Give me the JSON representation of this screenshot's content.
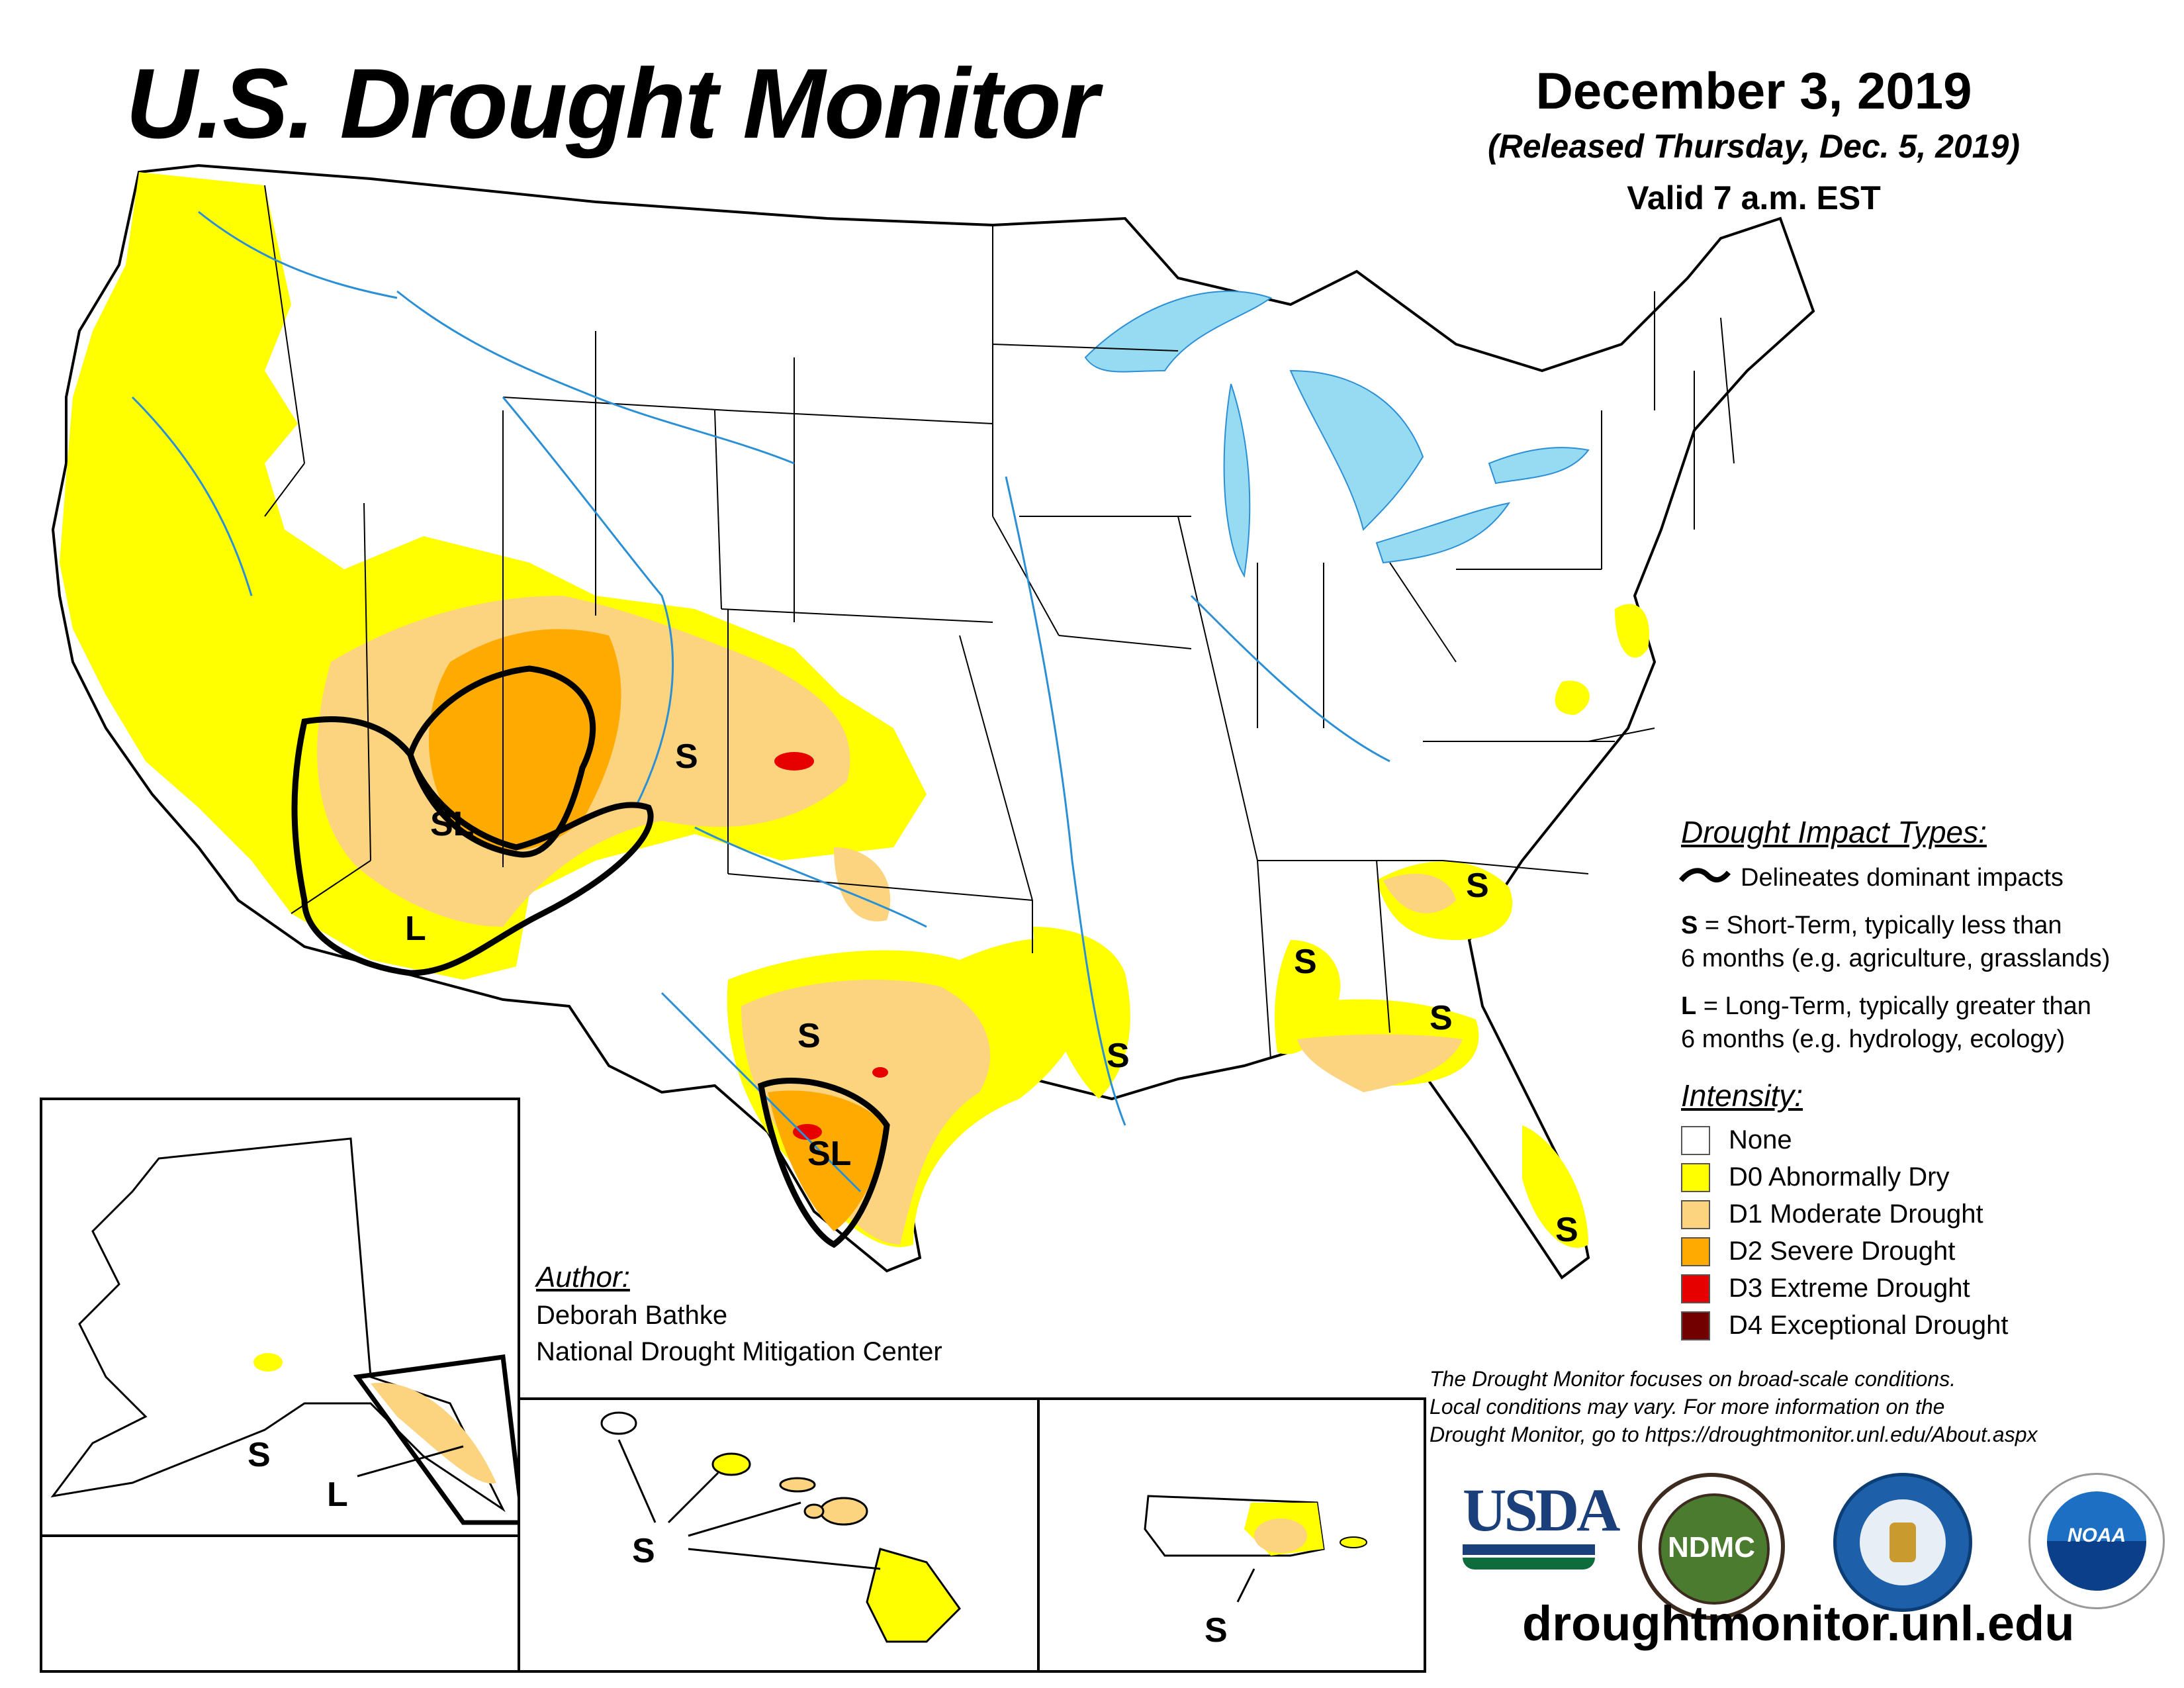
{
  "header": {
    "title": "U.S. Drought Monitor",
    "date": "December 3, 2019",
    "released": "(Released Thursday, Dec. 5, 2019)",
    "valid": "Valid 7 a.m. EST"
  },
  "impact_legend": {
    "heading": "Drought Impact Types:",
    "delineates": "Delineates dominant impacts",
    "s_prefix": "S",
    "s_line1": " = Short-Term, typically less than",
    "s_line2": "6 months (e.g. agriculture, grasslands)",
    "l_prefix": "L",
    "l_line1": " = Long-Term, typically greater than",
    "l_line2": "6 months (e.g. hydrology, ecology)"
  },
  "intensity_legend": {
    "heading": "Intensity:",
    "items": [
      {
        "label": "None",
        "color": "#ffffff"
      },
      {
        "label": "D0 Abnormally Dry",
        "color": "#ffff00"
      },
      {
        "label": "D1 Moderate Drought",
        "color": "#fcd37f"
      },
      {
        "label": "D2 Severe Drought",
        "color": "#ffaa00"
      },
      {
        "label": "D3 Extreme Drought",
        "color": "#e60000"
      },
      {
        "label": "D4 Exceptional Drought",
        "color": "#730000"
      }
    ]
  },
  "author": {
    "heading": "Author:",
    "name": "Deborah Bathke",
    "org": "National Drought Mitigation Center"
  },
  "disclaimer": {
    "line1": "The Drought Monitor focuses on broad-scale conditions.",
    "line2": "Local conditions may vary. For more information on the",
    "line3": "Drought Monitor, go to https://droughtmonitor.unl.edu/About.aspx"
  },
  "url": "droughtmonitor.unl.edu",
  "logos": {
    "usda": "USDA",
    "ndmc": "NDMC",
    "noaa": "NOAA"
  },
  "map_labels": {
    "short_term": "S",
    "long_term": "L",
    "short_long": "SL"
  },
  "colors": {
    "water": "#97dbf2",
    "river": "#2b8fd6",
    "outline": "#000000"
  }
}
